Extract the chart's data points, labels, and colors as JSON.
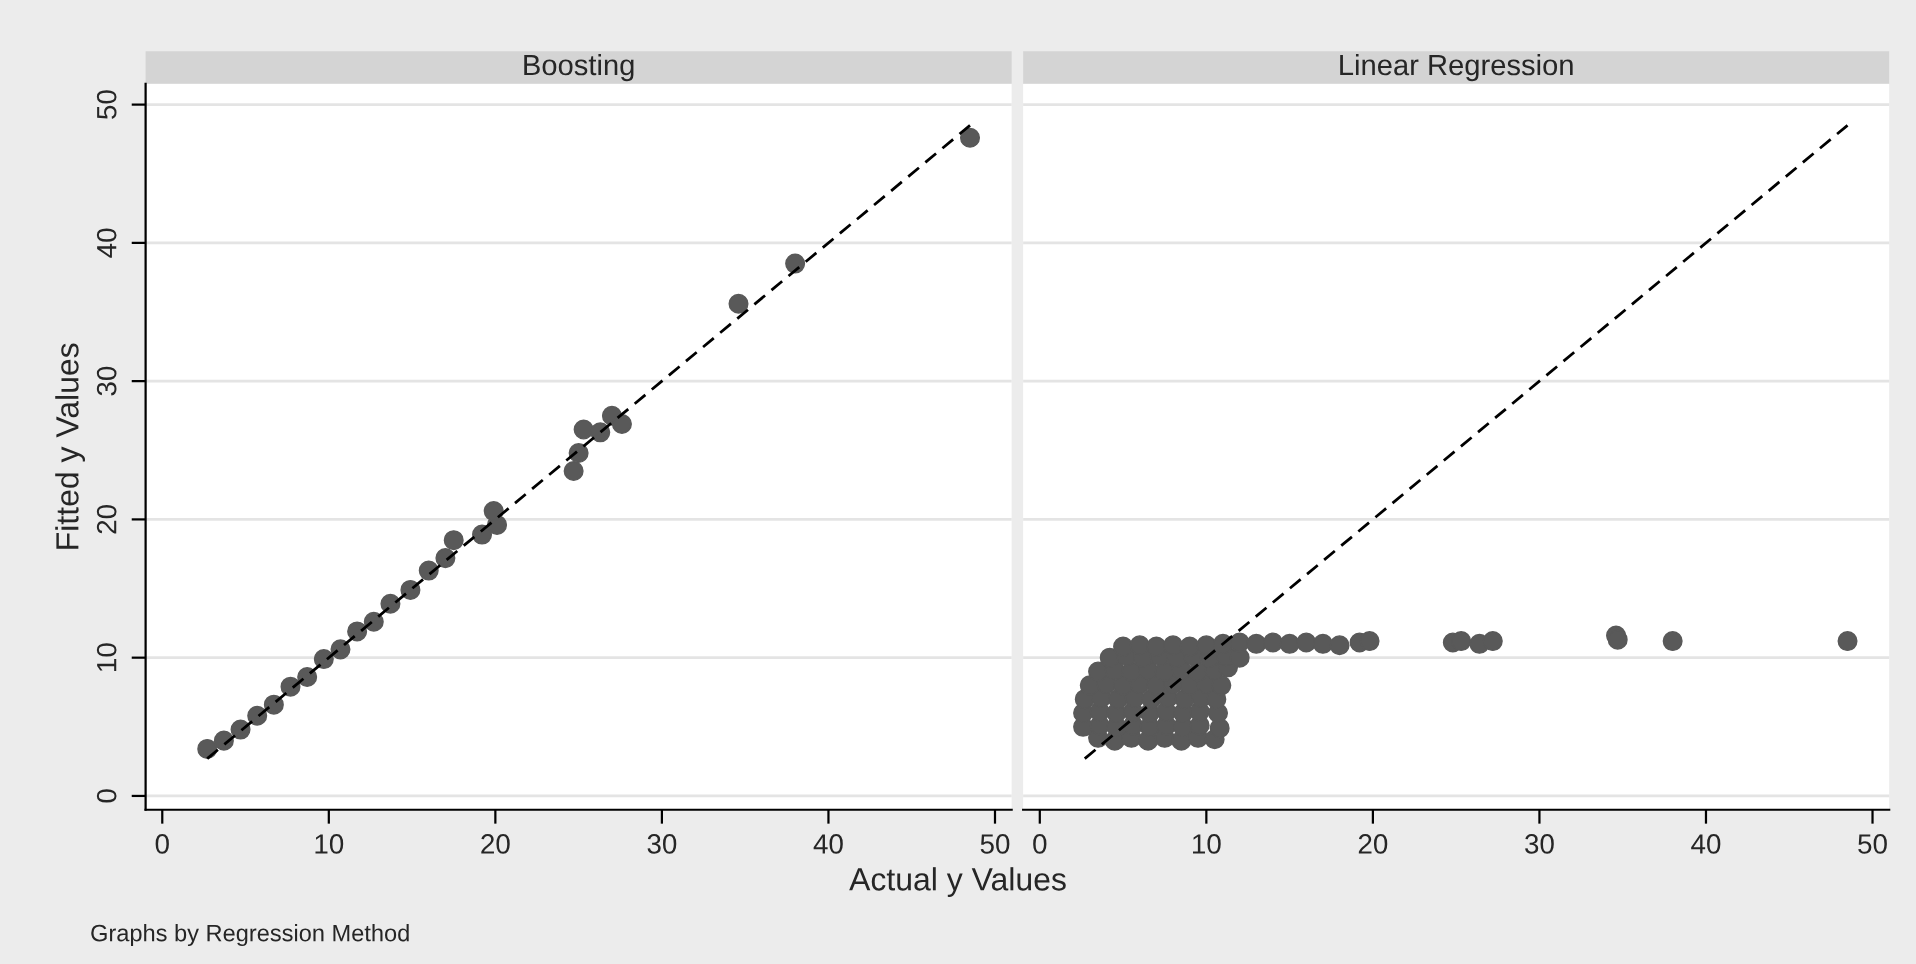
{
  "chart_data": [
    {
      "type": "scatter",
      "title": "Boosting",
      "xlabel": "Actual y Values",
      "ylabel": "Fitted y Values",
      "annotations": [
        "Graphs by Regression Method"
      ],
      "xlim": [
        -1,
        51
      ],
      "ylim": [
        -1,
        51.5
      ],
      "xticks": [
        0,
        10,
        20,
        30,
        40,
        50
      ],
      "yticks": [
        0,
        10,
        20,
        30,
        40,
        50
      ],
      "grid": "y",
      "marker": "circle",
      "series": [
        {
          "color": "#595959",
          "x": [
            2.7,
            3.7,
            4.7,
            5.7,
            6.7,
            7.7,
            8.7,
            9.7,
            10.7,
            11.7,
            12.7,
            13.7,
            14.9,
            16.0,
            17.0,
            17.5,
            19.2,
            20.1,
            19.9,
            24.7,
            25.0,
            25.3,
            26.3,
            27.0,
            27.6,
            34.6,
            38.0,
            48.5
          ],
          "values": [
            3.4,
            4.0,
            4.8,
            5.8,
            6.6,
            7.9,
            8.6,
            9.9,
            10.6,
            11.9,
            12.6,
            13.9,
            14.9,
            16.3,
            17.2,
            18.5,
            18.9,
            19.6,
            20.6,
            23.5,
            24.8,
            26.5,
            26.3,
            27.5,
            26.9,
            35.6,
            38.5,
            47.6
          ]
        },
        {
          "type": "line",
          "color": "#000000",
          "line_style": "dashed",
          "marker": "none",
          "x": [
            2.7,
            48.5
          ],
          "values": [
            2.7,
            48.5
          ]
        }
      ]
    },
    {
      "type": "scatter",
      "title": "Linear Regression",
      "xlim": [
        -1,
        51
      ],
      "ylim": [
        -1,
        51.5
      ],
      "xticks": [
        0,
        10,
        20,
        30,
        40,
        50
      ],
      "yticks": [
        0,
        10,
        20,
        30,
        40,
        50
      ],
      "grid": "y",
      "marker": "circle",
      "tick_labels": "x",
      "series": [
        {
          "color": "#595959",
          "x": [
            3.5,
            4.5,
            5.5,
            6.5,
            7.5,
            8.5,
            9.5,
            10.5,
            2.6,
            3.6,
            4.6,
            5.6,
            6.6,
            7.6,
            8.6,
            9.6,
            10.8,
            2.6,
            3.6,
            4.6,
            5.6,
            6.6,
            7.6,
            8.6,
            9.6,
            10.7,
            2.7,
            3.7,
            4.7,
            5.7,
            6.7,
            7.7,
            8.7,
            9.7,
            10.6,
            3.0,
            4.0,
            5.0,
            6.0,
            7.0,
            8.0,
            9.0,
            10.0,
            10.9,
            3.5,
            4.5,
            5.5,
            6.5,
            7.5,
            8.5,
            9.5,
            10.5,
            11.3,
            4.2,
            5.2,
            6.2,
            7.2,
            8.2,
            9.2,
            10.2,
            11.2,
            12.0,
            5.0,
            6.0,
            7.0,
            8.0,
            9.0,
            10.0,
            11.0,
            12.0,
            13.0,
            14.0,
            15.0,
            16.0,
            17.0,
            18.0,
            19.2,
            19.8,
            24.8,
            25.3,
            26.4,
            27.2,
            34.6,
            34.7,
            38.0,
            48.5
          ],
          "values": [
            4.2,
            4.0,
            4.2,
            4.0,
            4.2,
            4.0,
            4.2,
            4.1,
            5.0,
            5.1,
            5.0,
            5.1,
            5.0,
            5.1,
            5.0,
            5.1,
            4.9,
            6.0,
            6.1,
            6.0,
            6.1,
            6.0,
            6.1,
            6.0,
            6.1,
            6.0,
            7.0,
            7.1,
            7.0,
            7.1,
            7.0,
            7.1,
            7.0,
            7.1,
            7.0,
            8.0,
            8.1,
            8.0,
            8.1,
            8.0,
            8.1,
            8.0,
            8.1,
            8.0,
            9.0,
            9.1,
            9.0,
            9.1,
            9.0,
            9.1,
            9.0,
            9.1,
            9.3,
            10.0,
            10.1,
            10.0,
            10.1,
            10.0,
            10.1,
            10.0,
            10.1,
            10.0,
            10.8,
            10.9,
            10.8,
            10.9,
            10.8,
            10.9,
            11.0,
            11.1,
            11.0,
            11.1,
            11.0,
            11.1,
            11.0,
            10.9,
            11.1,
            11.2,
            11.1,
            11.2,
            11.0,
            11.2,
            11.6,
            11.3,
            11.2,
            11.2
          ]
        },
        {
          "type": "line",
          "color": "#000000",
          "line_style": "dashed",
          "marker": "none",
          "x": [
            2.7,
            48.5
          ],
          "values": [
            2.7,
            48.5
          ]
        }
      ]
    }
  ]
}
